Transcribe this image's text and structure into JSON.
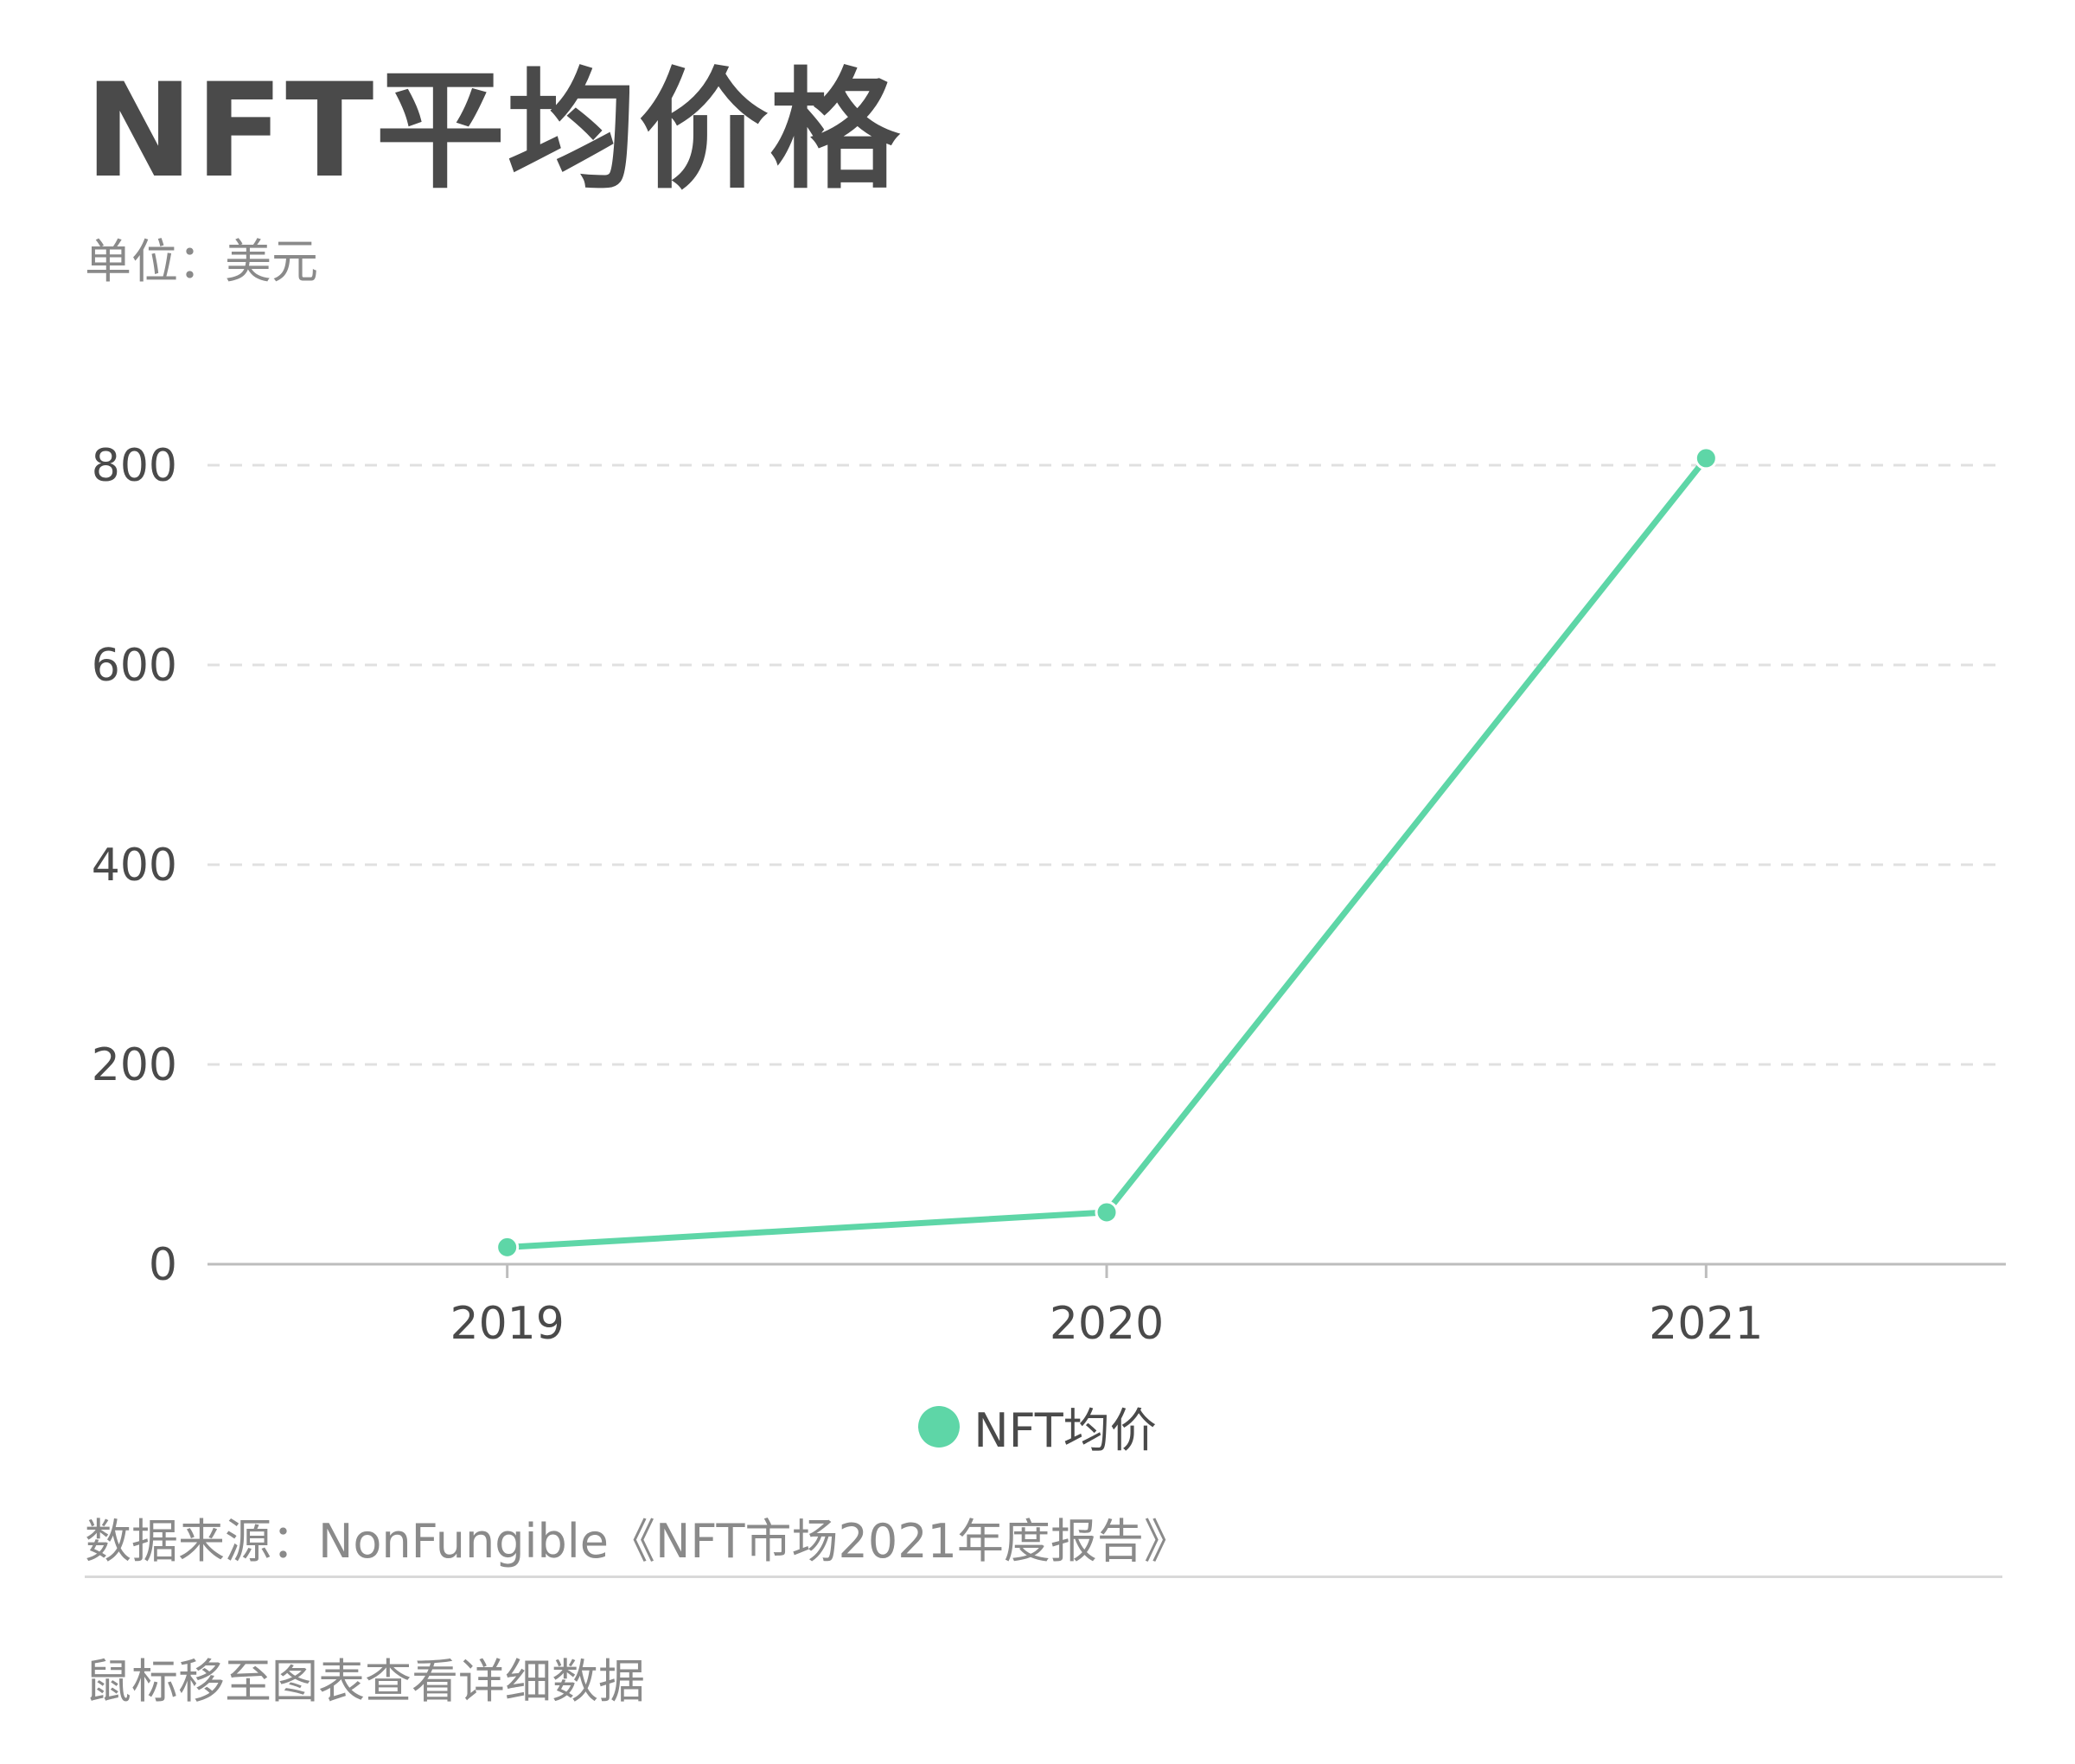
{
  "header": {
    "title": "NFT平均价格",
    "subtitle": "单位：美元"
  },
  "colors": {
    "series": "#5ed6a7",
    "grid": "#e0e0e0",
    "axis": "#bdbdbd",
    "text": "#4a4a4a",
    "muted": "#8a8a8a"
  },
  "chart_data": {
    "type": "line",
    "x": [
      "2019",
      "2020",
      "2021"
    ],
    "series": [
      {
        "name": "NFT均价",
        "values": [
          17,
          52,
          807
        ]
      }
    ],
    "yticks": [
      0,
      200,
      400,
      600,
      800
    ],
    "ylim": [
      0,
      800
    ],
    "grid": "horizontal-dashed",
    "legend": "bottom-center"
  },
  "footer": {
    "source": "数据来源：NonFungible《NFT市场2021年度报告》",
    "hint": "鼠标移至图表查看详细数据"
  }
}
